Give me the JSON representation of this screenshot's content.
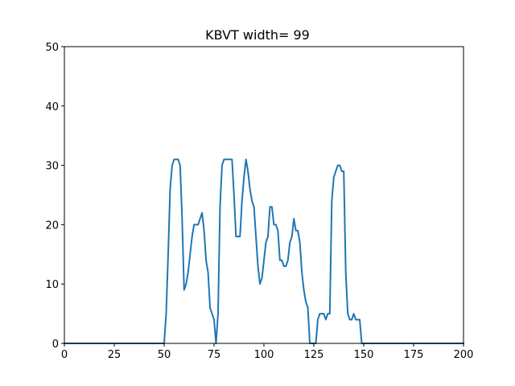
{
  "chart_data": {
    "type": "line",
    "title": "KBVT width= 99",
    "xlabel": "",
    "ylabel": "",
    "xlim": [
      0,
      200
    ],
    "ylim": [
      0,
      50
    ],
    "xticks": [
      0,
      25,
      50,
      75,
      100,
      125,
      150,
      175,
      200
    ],
    "yticks": [
      0,
      10,
      20,
      30,
      40,
      50
    ],
    "grid": false,
    "series": [
      {
        "color": "#1f77b4",
        "x": [
          0,
          50,
          51,
          52,
          53,
          54,
          55,
          56,
          57,
          58,
          59,
          60,
          61,
          62,
          63,
          64,
          65,
          66,
          67,
          68,
          69,
          70,
          71,
          72,
          73,
          74,
          75,
          76,
          77,
          78,
          79,
          80,
          81,
          82,
          83,
          84,
          85,
          86,
          87,
          88,
          89,
          90,
          91,
          92,
          93,
          94,
          95,
          96,
          97,
          98,
          99,
          100,
          101,
          102,
          103,
          104,
          105,
          106,
          107,
          108,
          109,
          110,
          111,
          112,
          113,
          114,
          115,
          116,
          117,
          118,
          119,
          120,
          121,
          122,
          123,
          124,
          125,
          126,
          127,
          128,
          129,
          130,
          131,
          132,
          133,
          134,
          135,
          136,
          137,
          138,
          139,
          140,
          141,
          142,
          143,
          144,
          145,
          146,
          147,
          148,
          149,
          200
        ],
        "y": [
          0,
          0,
          5,
          15,
          26,
          30,
          31,
          31,
          31,
          30,
          21,
          9,
          10,
          12,
          15,
          18,
          20,
          20,
          20,
          21,
          22,
          19,
          14,
          12,
          6,
          5,
          4,
          0,
          5,
          23,
          30,
          31,
          31,
          31,
          31,
          31,
          25,
          18,
          18,
          18,
          24,
          28,
          31,
          29,
          26,
          24,
          23,
          18,
          13,
          10,
          11,
          14,
          17,
          18,
          23,
          23,
          20,
          20,
          19,
          14,
          14,
          13,
          13,
          14,
          17,
          18,
          21,
          19,
          19,
          17,
          12,
          9,
          7,
          6,
          0,
          0,
          0,
          0,
          4,
          5,
          5,
          5,
          4,
          5,
          5,
          24,
          28,
          29,
          30,
          30,
          29,
          29,
          12,
          5,
          4,
          4,
          5,
          4,
          4,
          4,
          0,
          0
        ]
      }
    ]
  }
}
